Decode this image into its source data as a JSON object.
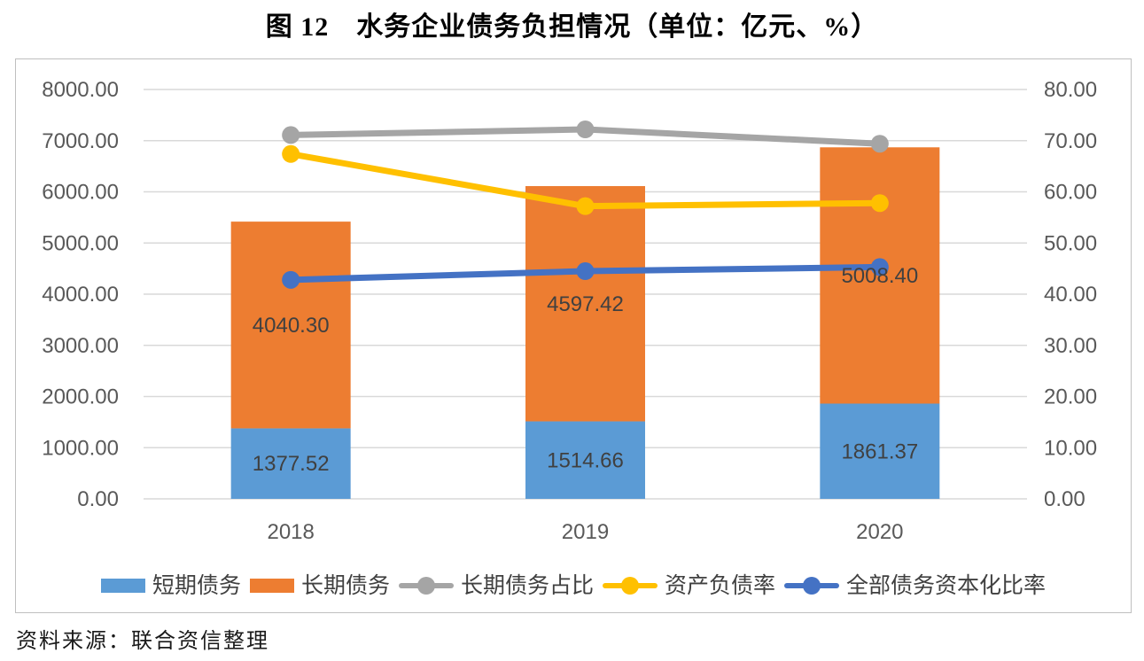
{
  "title": "图 12　水务企业债务负担情况（单位：亿元、%）",
  "source_note": "资料来源：联合资信整理",
  "colors": {
    "short_term_bar": "#5B9BD5",
    "long_term_bar": "#ED7D31",
    "long_term_ratio_line": "#A5A5A5",
    "asset_liability_line": "#FFC000",
    "capitalization_line": "#4472C4",
    "gridline": "#D9D9D9",
    "axis_text": "#595959",
    "data_label_text": "#404040",
    "frame_border": "#BFBFBF"
  },
  "chart_data": {
    "type": "combo: stacked bar (left axis, 亿元) + line (right axis, %)",
    "categories": [
      "2018",
      "2019",
      "2020"
    ],
    "bar_series": [
      {
        "name": "短期债务",
        "color": "#5B9BD5",
        "axis": "left",
        "values": [
          1377.52,
          1514.66,
          1861.37
        ]
      },
      {
        "name": "长期债务",
        "color": "#ED7D31",
        "axis": "left",
        "values": [
          4040.3,
          4597.42,
          5008.4
        ]
      }
    ],
    "line_series": [
      {
        "name": "长期债务占比",
        "color": "#A5A5A5",
        "axis": "right",
        "values": [
          71.1,
          72.2,
          69.4
        ]
      },
      {
        "name": "资产负债率",
        "color": "#FFC000",
        "axis": "right",
        "values": [
          67.4,
          57.2,
          57.8
        ]
      },
      {
        "name": "全部债务资本化比率",
        "color": "#4472C4",
        "axis": "right",
        "values": [
          42.8,
          44.5,
          45.3
        ]
      }
    ],
    "bar_data_labels": [
      [
        "1377.52",
        "1514.66",
        "1861.37"
      ],
      [
        "4040.30",
        "4597.42",
        "5008.40"
      ]
    ],
    "left_axis": {
      "min": 0,
      "max": 8000,
      "step": 1000,
      "tick_labels": [
        "0.00",
        "1000.00",
        "2000.00",
        "3000.00",
        "4000.00",
        "5000.00",
        "6000.00",
        "7000.00",
        "8000.00"
      ]
    },
    "right_axis": {
      "min": 0,
      "max": 80,
      "step": 10,
      "tick_labels": [
        "0.00",
        "10.00",
        "20.00",
        "30.00",
        "40.00",
        "50.00",
        "60.00",
        "70.00",
        "80.00"
      ]
    },
    "grid": true,
    "legend_position": "bottom",
    "title": "图 12　水务企业债务负担情况（单位：亿元、%）"
  }
}
